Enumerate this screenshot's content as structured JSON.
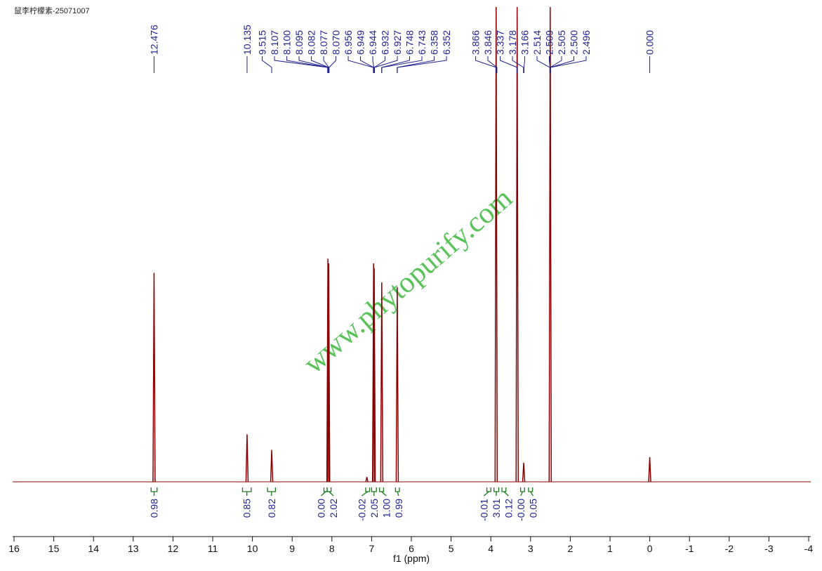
{
  "chart_data": {
    "type": "nmr",
    "title": "鼠李柠檬素-25071007",
    "x_label": "f1 (ppm)",
    "watermark": "www.phytopurify.com",
    "xlim": [
      16,
      -4
    ],
    "xticks": [
      16,
      15,
      14,
      13,
      12,
      11,
      10,
      9,
      8,
      7,
      6,
      5,
      4,
      3,
      2,
      1,
      0,
      -1,
      -2,
      -3,
      -4
    ],
    "ylim": [
      0,
      100
    ],
    "spectrum": {
      "color": "#8b0000",
      "x": [
        12.476,
        10.135,
        9.515,
        8.1,
        8.08,
        7.12,
        6.95,
        6.935,
        6.745,
        6.355,
        3.866,
        3.337,
        3.172,
        2.505,
        0.0
      ],
      "values": [
        44,
        10,
        6.7,
        47,
        46,
        1,
        46,
        45,
        42,
        41,
        100,
        100,
        4,
        100,
        5.2
      ]
    },
    "peak_labels": {
      "color": "#1f1f8f",
      "values": [
        12.476,
        10.135,
        9.515,
        8.107,
        8.1,
        8.095,
        8.082,
        8.077,
        8.07,
        6.956,
        6.949,
        6.944,
        6.932,
        6.927,
        6.748,
        6.743,
        6.358,
        6.352,
        3.866,
        3.846,
        3.337,
        3.178,
        3.166,
        2.514,
        2.509,
        2.505,
        2.5,
        2.496,
        0.0
      ],
      "value_labels": [
        "12.476",
        "10.135",
        "9.515",
        "8.107",
        "8.100",
        "8.095",
        "8.082",
        "8.077",
        "8.070",
        "6.956",
        "6.949",
        "6.944",
        "6.932",
        "6.927",
        "6.748",
        "6.743",
        "6.358",
        "6.352",
        "3.866",
        "3.846",
        "3.337",
        "3.178",
        "3.166",
        "2.514",
        "2.509",
        "2.505",
        "2.500",
        "2.496",
        "0.000"
      ]
    },
    "integrals": {
      "color": "#1a7a1a",
      "ranges": [
        [
          12.55,
          12.4
        ],
        [
          10.25,
          10.03
        ],
        [
          9.62,
          9.42
        ],
        [
          8.2,
          8.12
        ],
        [
          8.12,
          8.02
        ],
        [
          7.15,
          7.05
        ],
        [
          7.0,
          6.88
        ],
        [
          6.8,
          6.7
        ],
        [
          6.4,
          6.3
        ],
        [
          4.1,
          4.0
        ],
        [
          3.92,
          3.8
        ],
        [
          3.72,
          3.62
        ],
        [
          3.25,
          3.15
        ],
        [
          3.05,
          2.95
        ]
      ],
      "values": [
        0.98,
        0.85,
        0.82,
        0.0,
        2.02,
        -0.02,
        2.05,
        1.0,
        0.99,
        -0.01,
        3.01,
        0.12,
        0.0,
        0.05
      ],
      "value_labels": [
        "0.98",
        "0.85",
        "0.82",
        "0.00",
        "2.02",
        "-0.02",
        "2.05",
        "1.00",
        "0.99",
        "-0.01",
        "3.01",
        "0.12",
        "-0.00",
        "0.05"
      ]
    }
  }
}
